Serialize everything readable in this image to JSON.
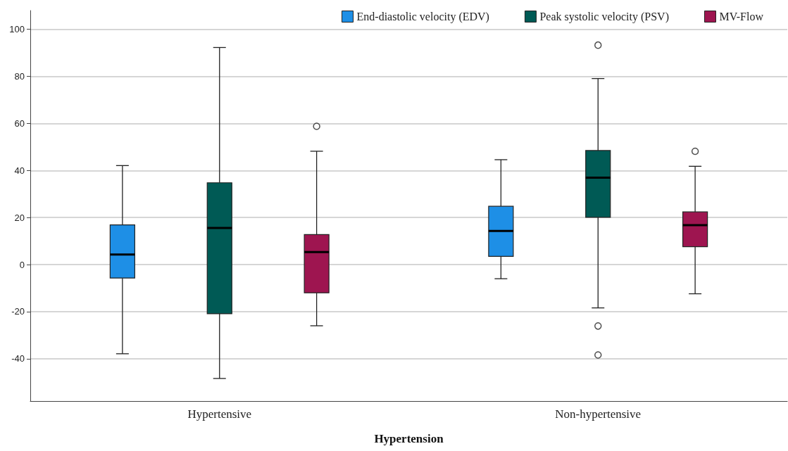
{
  "chart_data": {
    "type": "box",
    "xlabel": "Hypertension",
    "categories": [
      "Hypertensive",
      "Non-hypertensive"
    ],
    "ylim": [
      -58,
      108
    ],
    "yticks": [
      -40,
      -20,
      0,
      20,
      40,
      60,
      80,
      100
    ],
    "grid": "y",
    "legend": "top right",
    "series": [
      {
        "name": "End-diastolic velocity (EDV)",
        "color": "#1e8fe6",
        "boxes": [
          {
            "low": -37.9,
            "q1": -5.7,
            "median": 4.3,
            "q3": 16.9,
            "high": 42.1
          },
          {
            "low": -6,
            "q1": 3.5,
            "median": 14.3,
            "q3": 24.8,
            "high": 44.6
          }
        ]
      },
      {
        "name": "Peak systolic velocity (PSV)",
        "color": "#005a55",
        "boxes": [
          {
            "low": -48.4,
            "q1": -20.9,
            "median": 15.6,
            "q3": 34.8,
            "high": 92.3
          },
          {
            "low": -18.4,
            "q1": 20.1,
            "median": 37,
            "q3": 48.5,
            "high": 79.1,
            "outliers": [
              93.3,
              -26.1,
              -38.4
            ]
          }
        ]
      },
      {
        "name": "MV-Flow",
        "color": "#9e1550",
        "boxes": [
          {
            "low": -26,
            "q1": -12,
            "median": 5.3,
            "q3": 12.8,
            "high": 48.2,
            "outliers": [
              58.8
            ]
          },
          {
            "low": -12.4,
            "q1": 7.6,
            "median": 16.8,
            "q3": 22.4,
            "high": 41.8,
            "outliers": [
              48.2
            ]
          }
        ]
      }
    ]
  }
}
